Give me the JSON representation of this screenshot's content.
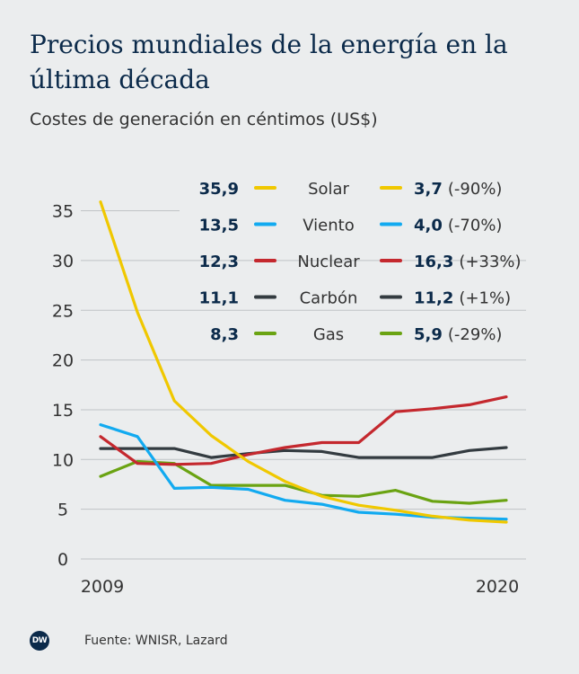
{
  "title": "Precios mundiales de la energía en la última década",
  "subtitle": "Costes de generación en céntimos (US$)",
  "footer": {
    "logo": "DW",
    "source": "Fuente: WNISR, Lazard"
  },
  "chart_data": {
    "type": "line",
    "x": [
      2009,
      2010,
      2011,
      2012,
      2013,
      2014,
      2015,
      2016,
      2017,
      2018,
      2019,
      2020
    ],
    "x_tick_labels": [
      "2009",
      "2020"
    ],
    "y_ticks": [
      0,
      5,
      10,
      15,
      20,
      25,
      30,
      35
    ],
    "ylim": [
      0,
      37
    ],
    "series": [
      {
        "name": "Solar",
        "color": "#f0c800",
        "start_label": "35,9",
        "end_label": "3,7",
        "change_label": "(-90%)",
        "values": [
          35.9,
          24.8,
          15.9,
          12.4,
          9.8,
          7.8,
          6.3,
          5.4,
          4.9,
          4.3,
          3.9,
          3.7
        ]
      },
      {
        "name": "Viento",
        "color": "#12aaf0",
        "start_label": "13,5",
        "end_label": "4,0",
        "change_label": "(-70%)",
        "values": [
          13.5,
          12.3,
          7.1,
          7.2,
          7.0,
          5.9,
          5.5,
          4.7,
          4.5,
          4.2,
          4.1,
          4.0
        ]
      },
      {
        "name": "Nuclear",
        "color": "#c4282e",
        "start_label": "12,3",
        "end_label": "16,3",
        "change_label": "(+33%)",
        "values": [
          12.3,
          9.6,
          9.5,
          9.6,
          10.5,
          11.2,
          11.7,
          11.7,
          14.8,
          15.1,
          15.5,
          16.3
        ]
      },
      {
        "name": "Carbón",
        "color": "#333b40",
        "start_label": "11,1",
        "end_label": "11,2",
        "change_label": "(+1%)",
        "values": [
          11.1,
          11.1,
          11.1,
          10.2,
          10.6,
          10.9,
          10.8,
          10.2,
          10.2,
          10.2,
          10.9,
          11.2
        ]
      },
      {
        "name": "Gas",
        "color": "#6aa312",
        "start_label": "8,3",
        "end_label": "5,9",
        "change_label": "(-29%)",
        "values": [
          8.3,
          9.8,
          9.6,
          7.4,
          7.4,
          7.4,
          6.4,
          6.3,
          6.9,
          5.8,
          5.6,
          5.9
        ]
      }
    ]
  }
}
